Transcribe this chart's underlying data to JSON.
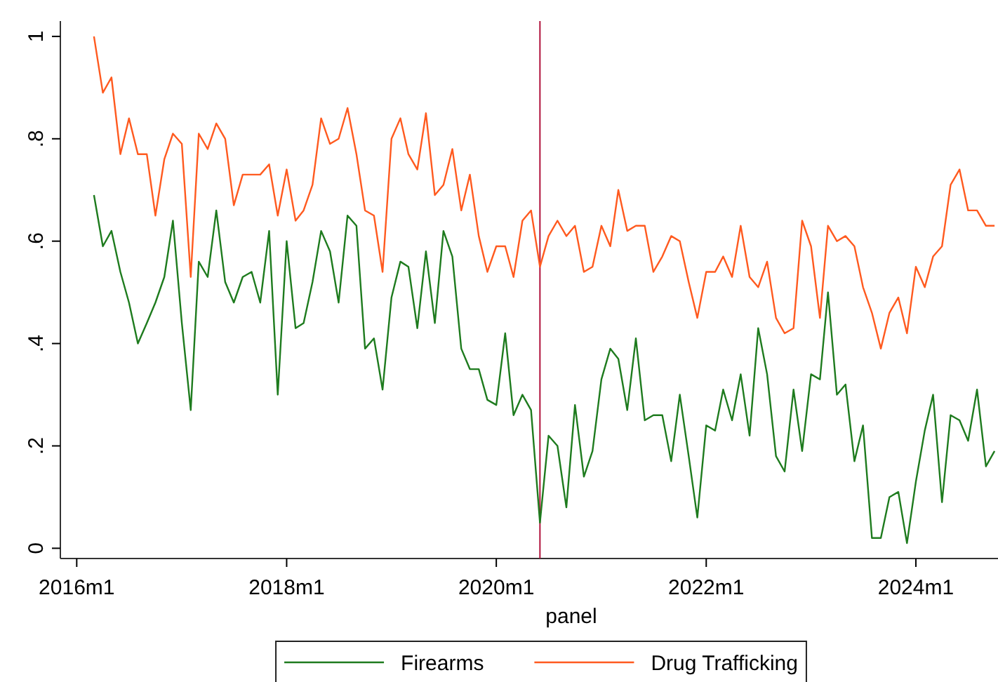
{
  "chart_data": {
    "type": "line",
    "xlabel": "panel",
    "x": [
      "2016-03",
      "2016-04",
      "2016-05",
      "2016-06",
      "2016-07",
      "2016-08",
      "2016-09",
      "2016-10",
      "2016-11",
      "2016-12",
      "2017-01",
      "2017-02",
      "2017-03",
      "2017-04",
      "2017-05",
      "2017-06",
      "2017-07",
      "2017-08",
      "2017-09",
      "2017-10",
      "2017-11",
      "2017-12",
      "2018-01",
      "2018-02",
      "2018-03",
      "2018-04",
      "2018-05",
      "2018-06",
      "2018-07",
      "2018-08",
      "2018-09",
      "2018-10",
      "2018-11",
      "2018-12",
      "2019-01",
      "2019-02",
      "2019-03",
      "2019-04",
      "2019-05",
      "2019-06",
      "2019-07",
      "2019-08",
      "2019-09",
      "2019-10",
      "2019-11",
      "2019-12",
      "2020-01",
      "2020-02",
      "2020-03",
      "2020-04",
      "2020-05",
      "2020-06",
      "2020-07",
      "2020-08",
      "2020-09",
      "2020-10",
      "2020-11",
      "2020-12",
      "2021-01",
      "2021-02",
      "2021-03",
      "2021-04",
      "2021-05",
      "2021-06",
      "2021-07",
      "2021-08",
      "2021-09",
      "2021-10",
      "2021-11",
      "2021-12",
      "2022-01",
      "2022-02",
      "2022-03",
      "2022-04",
      "2022-05",
      "2022-06",
      "2022-07",
      "2022-08",
      "2022-09",
      "2022-10",
      "2022-11",
      "2022-12",
      "2023-01",
      "2023-02",
      "2023-03",
      "2023-04",
      "2023-05",
      "2023-06",
      "2023-07",
      "2023-08",
      "2023-09",
      "2023-10",
      "2023-11",
      "2023-12",
      "2024-01",
      "2024-02",
      "2024-03",
      "2024-04",
      "2024-05",
      "2024-06",
      "2024-07",
      "2024-08",
      "2024-09",
      "2024-10"
    ],
    "series": [
      {
        "name": "Firearms",
        "color": "#1e7b1e",
        "values": [
          0.69,
          0.59,
          0.62,
          0.54,
          0.48,
          0.4,
          0.44,
          0.48,
          0.53,
          0.64,
          0.44,
          0.27,
          0.56,
          0.53,
          0.66,
          0.52,
          0.48,
          0.53,
          0.54,
          0.48,
          0.62,
          0.3,
          0.6,
          0.43,
          0.44,
          0.52,
          0.62,
          0.58,
          0.48,
          0.65,
          0.63,
          0.39,
          0.41,
          0.31,
          0.49,
          0.56,
          0.55,
          0.43,
          0.58,
          0.44,
          0.62,
          0.57,
          0.39,
          0.35,
          0.35,
          0.29,
          0.28,
          0.42,
          0.26,
          0.3,
          0.27,
          0.05,
          0.22,
          0.2,
          0.08,
          0.28,
          0.14,
          0.19,
          0.33,
          0.39,
          0.37,
          0.27,
          0.41,
          0.25,
          0.26,
          0.26,
          0.17,
          0.3,
          0.18,
          0.06,
          0.24,
          0.23,
          0.31,
          0.25,
          0.34,
          0.22,
          0.43,
          0.34,
          0.18,
          0.15,
          0.31,
          0.19,
          0.34,
          0.33,
          0.5,
          0.3,
          0.32,
          0.17,
          0.24,
          0.02,
          0.02,
          0.1,
          0.11,
          0.01,
          0.13,
          0.23,
          0.3,
          0.09,
          0.26,
          0.25,
          0.21,
          0.31,
          0.16,
          0.19
        ]
      },
      {
        "name": "Drug Trafficking",
        "color": "#ff5a1f",
        "values": [
          1.0,
          0.89,
          0.92,
          0.77,
          0.84,
          0.77,
          0.77,
          0.65,
          0.76,
          0.81,
          0.79,
          0.53,
          0.81,
          0.78,
          0.83,
          0.8,
          0.67,
          0.73,
          0.73,
          0.73,
          0.75,
          0.65,
          0.74,
          0.64,
          0.66,
          0.71,
          0.84,
          0.79,
          0.8,
          0.86,
          0.77,
          0.66,
          0.65,
          0.54,
          0.8,
          0.84,
          0.77,
          0.74,
          0.85,
          0.69,
          0.71,
          0.78,
          0.66,
          0.73,
          0.61,
          0.54,
          0.59,
          0.59,
          0.53,
          0.64,
          0.66,
          0.55,
          0.61,
          0.64,
          0.61,
          0.63,
          0.54,
          0.55,
          0.63,
          0.59,
          0.7,
          0.62,
          0.63,
          0.63,
          0.54,
          0.57,
          0.61,
          0.6,
          0.52,
          0.45,
          0.54,
          0.54,
          0.57,
          0.53,
          0.63,
          0.53,
          0.51,
          0.56,
          0.45,
          0.42,
          0.43,
          0.64,
          0.59,
          0.45,
          0.63,
          0.6,
          0.61,
          0.59,
          0.51,
          0.46,
          0.39,
          0.46,
          0.49,
          0.42,
          0.55,
          0.51,
          0.57,
          0.59,
          0.71,
          0.74,
          0.66,
          0.66,
          0.63,
          0.63
        ]
      }
    ],
    "xlim": [
      "2015-11-05",
      "2024-10-13"
    ],
    "xticks": [
      {
        "value": "2016-01",
        "label": "2016m1"
      },
      {
        "value": "2018-01",
        "label": "2018m1"
      },
      {
        "value": "2020-01",
        "label": "2020m1"
      },
      {
        "value": "2022-01",
        "label": "2022m1"
      },
      {
        "value": "2024-01",
        "label": "2024m1"
      }
    ],
    "ylim": [
      -0.02,
      1.03
    ],
    "yticks": [
      0,
      {
        "value": 0.2,
        "label": ".2"
      },
      {
        "value": 0.4,
        "label": ".4"
      },
      {
        "value": 0.6,
        "label": ".6"
      },
      {
        "value": 0.8,
        "label": ".8"
      },
      1
    ],
    "ref_lines": [
      {
        "axis": "x",
        "value": "2020-06",
        "color": "#b0123c"
      }
    ],
    "grid": false,
    "legend": "bottom",
    "line_style": "solid",
    "marker": "none"
  }
}
